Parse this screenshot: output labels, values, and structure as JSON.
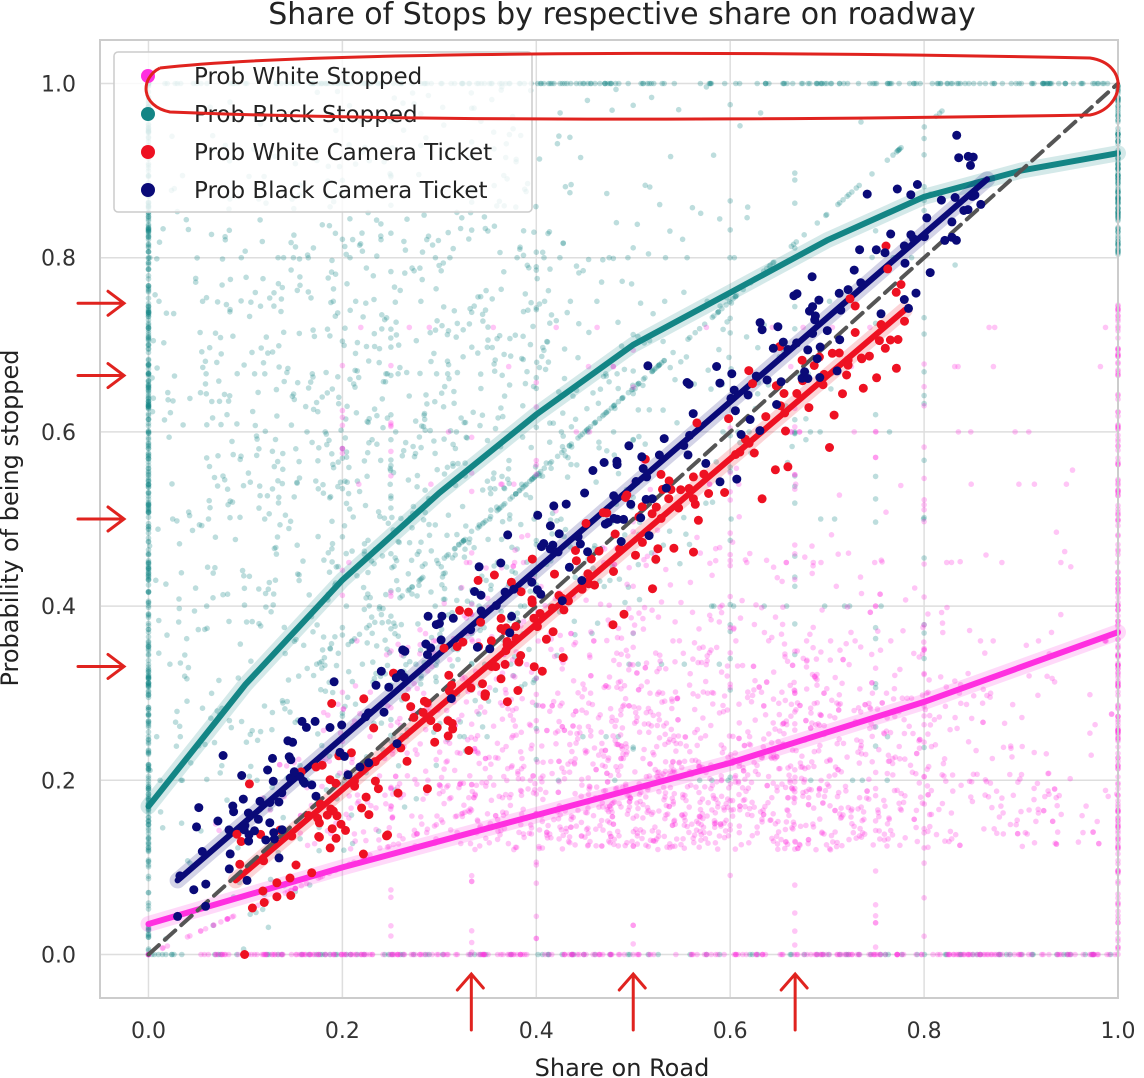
{
  "chart_data": {
    "type": "scatter",
    "title": "Share of Stops by respective share on roadway",
    "xlabel": "Share on Road",
    "ylabel": "Probability of being stopped",
    "xlim": [
      -0.05,
      1.0
    ],
    "ylim": [
      -0.05,
      1.05
    ],
    "xticks": [
      "0.0",
      "0.2",
      "0.4",
      "0.6",
      "0.8",
      "1.0"
    ],
    "yticks": [
      "0.0",
      "0.2",
      "0.4",
      "0.6",
      "0.8",
      "1.0"
    ],
    "grid": true,
    "legend_position": "top-left",
    "series": [
      {
        "name": "Prob White Stopped",
        "kind": "scatter",
        "color": "#ff2fe0",
        "cloud_center": [
          0.6,
          0.2
        ],
        "approx_points": 6000
      },
      {
        "name": "Prob Black Stopped",
        "kind": "scatter",
        "color": "#138585",
        "cloud_center": [
          0.3,
          0.6
        ],
        "approx_points": 6000
      },
      {
        "name": "Prob White Camera Ticket",
        "kind": "scatter",
        "color": "#ee1122",
        "x_range": [
          0.09,
          0.78
        ]
      },
      {
        "name": "Prob Black Camera Ticket",
        "kind": "scatter",
        "color": "#0a0a78",
        "x_range": [
          0.03,
          0.86
        ]
      }
    ],
    "fit_lines": [
      {
        "series": "Prob White Stopped",
        "color": "#ff2fe0",
        "x": [
          0.0,
          0.2,
          0.4,
          0.6,
          0.8,
          1.0
        ],
        "y": [
          0.035,
          0.1,
          0.16,
          0.22,
          0.29,
          0.37
        ]
      },
      {
        "series": "Prob Black Stopped",
        "color": "#138585",
        "x": [
          0.0,
          0.1,
          0.2,
          0.3,
          0.4,
          0.5,
          0.6,
          0.7,
          0.8,
          0.9,
          1.0
        ],
        "y": [
          0.17,
          0.31,
          0.43,
          0.53,
          0.62,
          0.7,
          0.76,
          0.82,
          0.87,
          0.9,
          0.92
        ]
      },
      {
        "series": "Prob White Camera Ticket",
        "color": "#ee1122",
        "x": [
          0.09,
          0.78
        ],
        "y": [
          0.085,
          0.74
        ]
      },
      {
        "series": "Prob Black Camera Ticket",
        "color": "#0a0a78",
        "x": [
          0.03,
          0.865
        ],
        "y": [
          0.085,
          0.89
        ]
      },
      {
        "series": "reference y = x",
        "color": "#555555",
        "dashed": true,
        "x": [
          0.0,
          1.0
        ],
        "y": [
          0.0,
          1.0
        ]
      }
    ],
    "annotations": {
      "arrows_left_y": [
        0.75,
        0.667,
        0.5,
        0.333
      ],
      "arrows_bottom_x": [
        0.333,
        0.5,
        0.667
      ],
      "legend_circled_entries": [
        "Prob White Stopped",
        "Prob Black Stopped"
      ]
    }
  }
}
